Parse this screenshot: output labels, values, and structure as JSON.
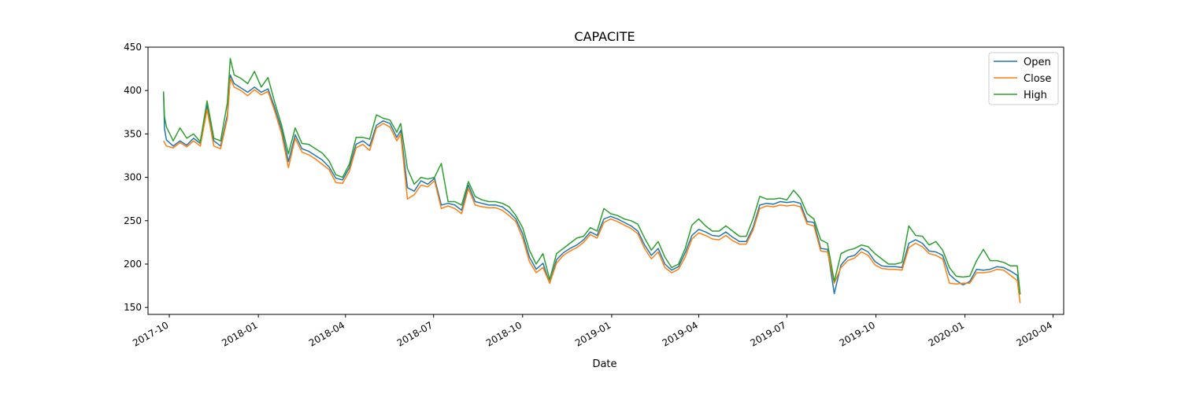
{
  "chart_data": {
    "type": "line",
    "title": "CAPACITE",
    "xlabel": "Date",
    "ylabel": "",
    "ylim": [
      142,
      450
    ],
    "xlim": [
      "2017-09-09",
      "2020-04-12"
    ],
    "x_ticks": [
      "2017-10",
      "2018-01",
      "2018-04",
      "2018-07",
      "2018-10",
      "2019-01",
      "2019-04",
      "2019-07",
      "2019-10",
      "2020-01",
      "2020-04"
    ],
    "y_ticks": [
      150,
      200,
      250,
      300,
      350,
      400,
      450
    ],
    "legend": {
      "position": "top-right",
      "entries": [
        "Open",
        "Close",
        "High"
      ]
    },
    "grid": false,
    "x": [
      "2017-09-25",
      "2017-09-26",
      "2017-09-28",
      "2017-10-05",
      "2017-10-12",
      "2017-10-19",
      "2017-10-26",
      "2017-11-02",
      "2017-11-09",
      "2017-11-16",
      "2017-11-23",
      "2017-11-30",
      "2017-12-03",
      "2017-12-07",
      "2017-12-14",
      "2017-12-21",
      "2017-12-28",
      "2018-01-04",
      "2018-01-11",
      "2018-01-18",
      "2018-01-25",
      "2018-02-01",
      "2018-02-08",
      "2018-02-15",
      "2018-02-22",
      "2018-03-01",
      "2018-03-08",
      "2018-03-15",
      "2018-03-22",
      "2018-03-29",
      "2018-04-05",
      "2018-04-12",
      "2018-04-19",
      "2018-04-26",
      "2018-05-03",
      "2018-05-10",
      "2018-05-17",
      "2018-05-24",
      "2018-05-28",
      "2018-06-04",
      "2018-06-11",
      "2018-06-18",
      "2018-06-25",
      "2018-07-02",
      "2018-07-09",
      "2018-07-16",
      "2018-07-23",
      "2018-07-30",
      "2018-08-06",
      "2018-08-13",
      "2018-08-20",
      "2018-08-27",
      "2018-09-03",
      "2018-09-10",
      "2018-09-17",
      "2018-09-24",
      "2018-10-01",
      "2018-10-08",
      "2018-10-15",
      "2018-10-22",
      "2018-10-29",
      "2018-11-05",
      "2018-11-12",
      "2018-11-19",
      "2018-11-26",
      "2018-12-03",
      "2018-12-10",
      "2018-12-17",
      "2018-12-24",
      "2018-12-31",
      "2019-01-07",
      "2019-01-14",
      "2019-01-21",
      "2019-01-28",
      "2019-02-04",
      "2019-02-11",
      "2019-02-18",
      "2019-02-25",
      "2019-03-04",
      "2019-03-11",
      "2019-03-18",
      "2019-03-25",
      "2019-04-01",
      "2019-04-08",
      "2019-04-15",
      "2019-04-22",
      "2019-04-29",
      "2019-05-06",
      "2019-05-13",
      "2019-05-20",
      "2019-05-27",
      "2019-06-03",
      "2019-06-10",
      "2019-06-17",
      "2019-06-24",
      "2019-07-01",
      "2019-07-08",
      "2019-07-15",
      "2019-07-22",
      "2019-07-29",
      "2019-08-05",
      "2019-08-12",
      "2019-08-19",
      "2019-08-26",
      "2019-09-02",
      "2019-09-09",
      "2019-09-16",
      "2019-09-23",
      "2019-09-30",
      "2019-10-07",
      "2019-10-14",
      "2019-10-21",
      "2019-10-28",
      "2019-11-04",
      "2019-11-11",
      "2019-11-18",
      "2019-11-25",
      "2019-12-02",
      "2019-12-09",
      "2019-12-16",
      "2019-12-23",
      "2019-12-30",
      "2020-01-06",
      "2020-01-13",
      "2020-01-20",
      "2020-01-27",
      "2020-02-03",
      "2020-02-10",
      "2020-02-17",
      "2020-02-24",
      "2020-02-27"
    ],
    "series": [
      {
        "name": "Open",
        "color": "#1f77b4",
        "values": [
          398,
          356,
          343,
          336,
          342,
          337,
          345,
          339,
          383,
          342,
          336,
          372,
          418,
          408,
          403,
          398,
          404,
          398,
          402,
          380,
          355,
          318,
          349,
          333,
          330,
          325,
          320,
          312,
          299,
          297,
          311,
          338,
          342,
          336,
          360,
          365,
          362,
          346,
          354,
          288,
          284,
          296,
          292,
          299,
          268,
          270,
          268,
          262,
          291,
          272,
          270,
          268,
          268,
          266,
          260,
          252,
          235,
          208,
          194,
          201,
          178,
          205,
          213,
          218,
          222,
          228,
          237,
          233,
          252,
          255,
          252,
          248,
          244,
          238,
          222,
          210,
          218,
          200,
          193,
          197,
          213,
          233,
          240,
          237,
          233,
          232,
          237,
          231,
          226,
          226,
          242,
          268,
          270,
          269,
          272,
          271,
          272,
          270,
          249,
          248,
          218,
          217,
          166,
          199,
          208,
          210,
          218,
          214,
          203,
          198,
          197,
          197,
          196,
          224,
          228,
          224,
          215,
          214,
          210,
          188,
          181,
          176,
          180,
          194,
          193,
          194,
          197,
          196,
          192,
          187,
          165
        ]
      },
      {
        "name": "Close",
        "color": "#ff7f0e",
        "values": [
          342,
          340,
          336,
          334,
          340,
          335,
          342,
          336,
          378,
          336,
          333,
          368,
          414,
          404,
          400,
          394,
          401,
          395,
          399,
          376,
          350,
          311,
          345,
          329,
          326,
          321,
          315,
          309,
          294,
          293,
          307,
          334,
          338,
          331,
          357,
          362,
          358,
          342,
          350,
          275,
          280,
          291,
          289,
          296,
          264,
          267,
          264,
          258,
          287,
          268,
          266,
          265,
          265,
          262,
          256,
          249,
          230,
          203,
          190,
          196,
          178,
          201,
          210,
          215,
          219,
          225,
          234,
          230,
          248,
          252,
          249,
          245,
          241,
          235,
          218,
          206,
          214,
          196,
          190,
          194,
          208,
          229,
          236,
          233,
          229,
          228,
          233,
          227,
          223,
          223,
          239,
          264,
          267,
          266,
          268,
          267,
          268,
          266,
          246,
          244,
          215,
          214,
          178,
          196,
          204,
          207,
          214,
          210,
          199,
          195,
          194,
          194,
          193,
          219,
          224,
          220,
          212,
          210,
          206,
          178,
          177,
          178,
          178,
          190,
          190,
          191,
          194,
          193,
          187,
          181,
          155
        ]
      },
      {
        "name": "High",
        "color": "#2ca02c",
        "values": [
          399,
          370,
          358,
          342,
          357,
          345,
          350,
          341,
          388,
          345,
          342,
          386,
          437,
          418,
          414,
          408,
          422,
          404,
          415,
          386,
          360,
          327,
          357,
          339,
          338,
          333,
          328,
          319,
          303,
          300,
          315,
          346,
          346,
          344,
          372,
          368,
          366,
          352,
          362,
          310,
          292,
          300,
          298,
          300,
          316,
          272,
          272,
          268,
          295,
          278,
          274,
          272,
          272,
          270,
          266,
          256,
          242,
          216,
          200,
          212,
          182,
          212,
          218,
          224,
          230,
          232,
          242,
          238,
          264,
          258,
          256,
          252,
          250,
          246,
          230,
          216,
          226,
          208,
          196,
          200,
          218,
          245,
          252,
          244,
          238,
          238,
          244,
          238,
          232,
          232,
          252,
          278,
          275,
          275,
          276,
          274,
          285,
          276,
          258,
          252,
          228,
          224,
          180,
          212,
          216,
          218,
          222,
          220,
          212,
          206,
          200,
          200,
          202,
          244,
          233,
          232,
          222,
          226,
          216,
          196,
          186,
          185,
          186,
          204,
          217,
          204,
          204,
          202,
          198,
          198,
          165
        ]
      }
    ]
  }
}
